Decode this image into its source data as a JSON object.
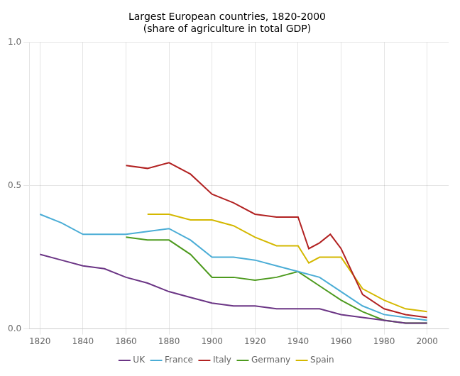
{
  "chart_data": {
    "type": "line",
    "title": [
      "Largest European countries, 1820-2000",
      "(share of agriculture in total GDP)"
    ],
    "series": [
      {
        "name": "UK",
        "color": "#6B3585",
        "x": [
          1820,
          1830,
          1840,
          1850,
          1860,
          1870,
          1880,
          1890,
          1900,
          1910,
          1920,
          1930,
          1940,
          1950,
          1960,
          1970,
          1980,
          1990,
          2000
        ],
        "values": [
          0.26,
          0.24,
          0.22,
          0.21,
          0.18,
          0.16,
          0.13,
          0.11,
          0.09,
          0.08,
          0.08,
          0.07,
          0.07,
          0.07,
          0.05,
          0.04,
          0.03,
          0.02,
          0.02
        ]
      },
      {
        "name": "France",
        "color": "#4BADD6",
        "x": [
          1820,
          1830,
          1840,
          1850,
          1860,
          1870,
          1880,
          1890,
          1900,
          1910,
          1920,
          1930,
          1940,
          1950,
          1960,
          1970,
          1980,
          1990,
          2000
        ],
        "values": [
          0.4,
          0.37,
          0.33,
          0.33,
          0.33,
          0.34,
          0.35,
          0.31,
          0.25,
          0.25,
          0.24,
          0.22,
          0.2,
          0.18,
          0.13,
          0.08,
          0.05,
          0.04,
          0.03
        ]
      },
      {
        "name": "Italy",
        "color": "#B22222",
        "x": [
          1860,
          1870,
          1880,
          1890,
          1900,
          1910,
          1920,
          1930,
          1938,
          1940,
          1945,
          1950,
          1955,
          1960,
          1970,
          1980,
          1990,
          2000
        ],
        "values": [
          0.57,
          0.56,
          0.58,
          0.54,
          0.47,
          0.44,
          0.4,
          0.39,
          0.39,
          0.39,
          0.28,
          0.3,
          0.33,
          0.28,
          0.12,
          0.07,
          0.05,
          0.04
        ]
      },
      {
        "name": "Germany",
        "color": "#4D9A1E",
        "x": [
          1860,
          1870,
          1880,
          1890,
          1900,
          1910,
          1920,
          1930,
          1940,
          1950,
          1960,
          1970,
          1980,
          1990,
          2000
        ],
        "values": [
          0.32,
          0.31,
          0.31,
          0.26,
          0.18,
          0.18,
          0.17,
          0.18,
          0.2,
          0.15,
          0.1,
          0.06,
          0.03,
          0.02,
          0.02
        ]
      },
      {
        "name": "Spain",
        "color": "#D4B800",
        "x": [
          1870,
          1880,
          1890,
          1900,
          1910,
          1920,
          1930,
          1940,
          1945,
          1950,
          1955,
          1960,
          1970,
          1980,
          1990,
          2000
        ],
        "values": [
          0.4,
          0.4,
          0.38,
          0.38,
          0.36,
          0.32,
          0.29,
          0.29,
          0.23,
          0.25,
          0.25,
          0.25,
          0.14,
          0.1,
          0.07,
          0.06
        ]
      }
    ],
    "xlim": [
      1815,
      2010
    ],
    "xticks": [
      1820,
      1840,
      1860,
      1880,
      1900,
      1920,
      1940,
      1960,
      1980,
      2000
    ],
    "ylim": [
      0,
      1.0
    ],
    "yticks": [
      {
        "value": 0,
        "label": "0.0"
      },
      {
        "value": 0.5,
        "label": "0.5"
      },
      {
        "value": 1,
        "label": "1.0"
      }
    ],
    "grid": true,
    "legend": "bottom"
  }
}
